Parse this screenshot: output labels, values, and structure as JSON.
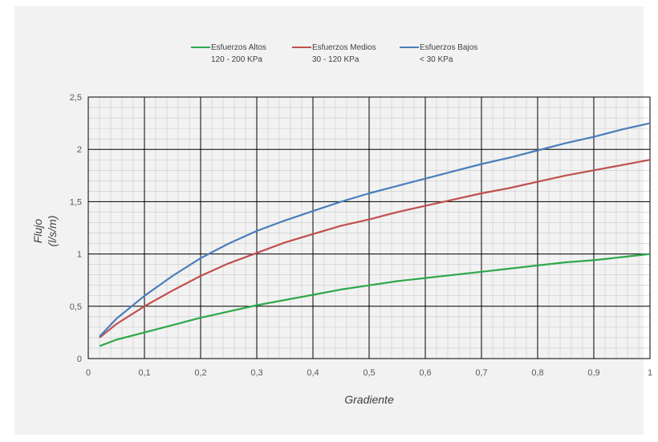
{
  "chart_data": {
    "type": "line",
    "xlabel": "Gradiente",
    "ylabel_line1": "Flujo",
    "ylabel_line2": "(l/s/m)",
    "xlim": [
      0,
      1
    ],
    "ylim": [
      0,
      2.5
    ],
    "xticks": [
      "0",
      "0,1",
      "0,2",
      "0,3",
      "0,4",
      "0,5",
      "0,6",
      "0,7",
      "0,8",
      "0,9",
      "1"
    ],
    "yticks": [
      "0",
      "0,5",
      "1",
      "1,5",
      "2",
      "2,5"
    ],
    "grid": true,
    "legend_position": "top",
    "x": [
      0.02,
      0.05,
      0.1,
      0.15,
      0.2,
      0.25,
      0.3,
      0.35,
      0.4,
      0.45,
      0.5,
      0.55,
      0.6,
      0.65,
      0.7,
      0.75,
      0.8,
      0.85,
      0.9,
      0.95,
      1.0
    ],
    "series": [
      {
        "name": "Esfuerzos Altos",
        "name2": "120 - 200 KPa",
        "color": "#2ea84a",
        "values": [
          0.12,
          0.18,
          0.25,
          0.32,
          0.39,
          0.45,
          0.51,
          0.56,
          0.61,
          0.66,
          0.7,
          0.74,
          0.77,
          0.8,
          0.83,
          0.86,
          0.89,
          0.92,
          0.94,
          0.97,
          1.0
        ]
      },
      {
        "name": "Esfuerzos Medios",
        "name2": "30 - 120 KPa",
        "color": "#c0504d",
        "values": [
          0.2,
          0.33,
          0.5,
          0.65,
          0.79,
          0.91,
          1.01,
          1.11,
          1.19,
          1.27,
          1.33,
          1.4,
          1.46,
          1.52,
          1.58,
          1.63,
          1.69,
          1.75,
          1.8,
          1.85,
          1.9
        ]
      },
      {
        "name": "Esfuerzos Bajos",
        "name2": "< 30 KPa",
        "color": "#4a7ebb",
        "values": [
          0.21,
          0.38,
          0.6,
          0.79,
          0.96,
          1.1,
          1.22,
          1.32,
          1.41,
          1.5,
          1.58,
          1.65,
          1.72,
          1.79,
          1.86,
          1.92,
          1.99,
          2.06,
          2.12,
          2.19,
          2.25
        ]
      }
    ]
  }
}
